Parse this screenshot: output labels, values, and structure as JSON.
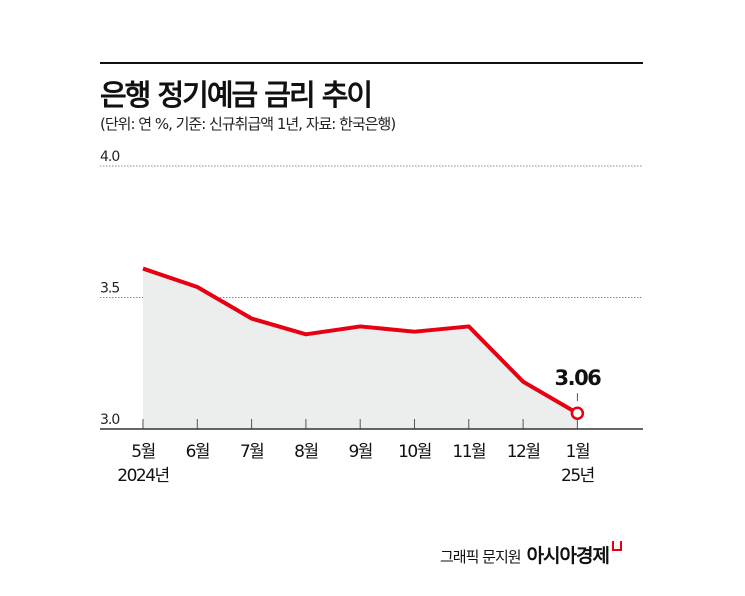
{
  "title": "은행 정기예금 금리 추이",
  "subtitle": "(단위: 연 %, 기준: 신규취급액 1년, 자료: 한국은행)",
  "credit": {
    "author": "그래픽 문지원",
    "brand": "아시아경제"
  },
  "colors": {
    "line": "#e60012",
    "area": "#eceeed",
    "grid": "#888888"
  },
  "chart_data": {
    "type": "area",
    "categories": [
      "5월",
      "6월",
      "7월",
      "8월",
      "9월",
      "10월",
      "11월",
      "12월",
      "1월"
    ],
    "category_sublabels": [
      "2024년",
      "",
      "",
      "",
      "",
      "",
      "",
      "",
      "25년"
    ],
    "values": [
      3.61,
      3.54,
      3.42,
      3.36,
      3.39,
      3.37,
      3.39,
      3.18,
      3.06
    ],
    "ylim": [
      3.0,
      4.0
    ],
    "yticks": [
      "3.0",
      "3.5",
      "4.0"
    ],
    "grid": "dotted horizontal",
    "annotation": {
      "index": 8,
      "label": "3.06"
    },
    "title": "은행 정기예금 금리 추이",
    "xlabel": "",
    "ylabel": ""
  }
}
